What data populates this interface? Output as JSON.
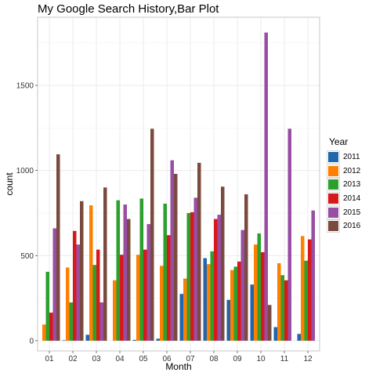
{
  "chart_data": {
    "type": "bar",
    "title": "My Google Search History,Bar Plot",
    "xlabel": "Month",
    "ylabel": "count",
    "categories": [
      "01",
      "02",
      "03",
      "04",
      "05",
      "06",
      "07",
      "08",
      "09",
      "10",
      "11",
      "12"
    ],
    "ylim": [
      -60,
      1900
    ],
    "yticks": [
      0,
      500,
      1000,
      1500
    ],
    "grid": true,
    "legend": {
      "title": "Year",
      "position": "right"
    },
    "series": [
      {
        "name": "2011",
        "color": "#2166ac",
        "values": [
          0,
          3,
          35,
          0,
          5,
          12,
          275,
          485,
          240,
          330,
          80,
          40
        ]
      },
      {
        "name": "2012",
        "color": "#ff7f00",
        "values": [
          95,
          430,
          795,
          355,
          505,
          440,
          365,
          450,
          415,
          565,
          455,
          615
        ]
      },
      {
        "name": "2013",
        "color": "#2ca02c",
        "values": [
          405,
          225,
          445,
          825,
          835,
          805,
          750,
          525,
          435,
          630,
          385,
          470
        ]
      },
      {
        "name": "2014",
        "color": "#d7191c",
        "values": [
          165,
          645,
          535,
          505,
          535,
          620,
          755,
          715,
          465,
          520,
          355,
          595
        ]
      },
      {
        "name": "2015",
        "color": "#984ea3",
        "values": [
          660,
          565,
          225,
          800,
          685,
          1060,
          840,
          740,
          650,
          1810,
          1245,
          765
        ]
      },
      {
        "name": "2016",
        "color": "#7b4a3e",
        "values": [
          1095,
          820,
          900,
          715,
          1245,
          980,
          1045,
          905,
          860,
          210,
          0,
          0
        ]
      }
    ]
  }
}
